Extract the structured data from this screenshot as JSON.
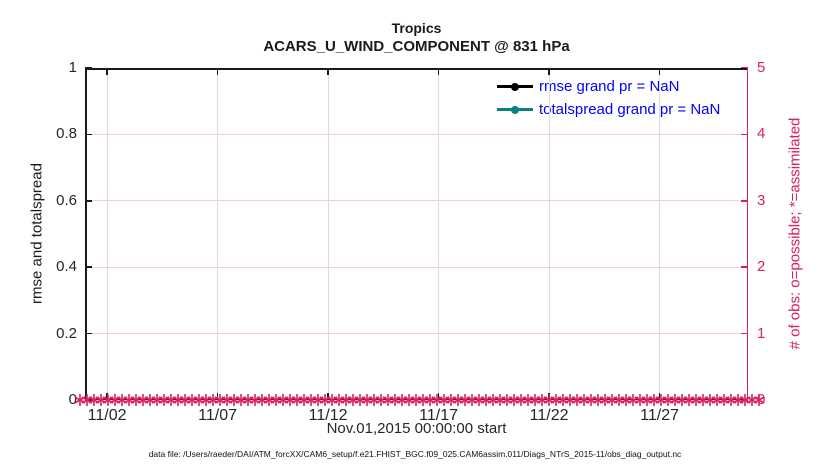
{
  "title": {
    "line1": "Tropics",
    "line2": "ACARS_U_WIND_COMPONENT @ 831 hPa"
  },
  "axes": {
    "left": {
      "label": "rmse and totalspread",
      "ticks": [
        "0",
        "0.2",
        "0.4",
        "0.6",
        "0.8",
        "1"
      ]
    },
    "right": {
      "label": "# of obs: o=possible; *=assimilated",
      "ticks": [
        "0",
        "1",
        "2",
        "3",
        "4",
        "5"
      ]
    },
    "x": {
      "label": "Nov.01,2015 00:00:00 start",
      "ticks": [
        "11/02",
        "11/07",
        "11/12",
        "11/17",
        "11/22",
        "11/27"
      ]
    }
  },
  "legend": [
    {
      "label": "rmse grand pr = NaN",
      "color": "#000000"
    },
    {
      "label": "totalspread grand pr = NaN",
      "color": "#0A8282"
    }
  ],
  "colors": {
    "obs": "#D8215D",
    "right_axis": "#D8215D",
    "legend_text": "#0000FF",
    "axis_dark": "#1a1a1a",
    "tick_label": "#262626"
  },
  "caption": "data file: /Users/raeder/DAI/ATM_forcXX/CAM6_setup/f.e21.FHIST_BGC.f09_025.CAM6assim.011/Diags_NTrS_2015-11/obs_diag_output.nc",
  "chart_data": {
    "type": "line",
    "title": "Tropics",
    "subtitle": "ACARS_U_WIND_COMPONENT @ 831 hPa",
    "xlabel": "Nov.01,2015 00:00:00 start",
    "x_tick_labels": [
      "11/02",
      "11/07",
      "11/12",
      "11/17",
      "11/22",
      "11/27"
    ],
    "x_range": [
      "2015-11-01 00:00",
      "2015-12-01 00:00"
    ],
    "y_left": {
      "label": "rmse and totalspread",
      "lim": [
        0,
        1
      ],
      "ticks": [
        0,
        0.2,
        0.4,
        0.6,
        0.8,
        1
      ]
    },
    "y_right": {
      "label": "# of obs: o=possible; *=assimilated",
      "lim": [
        0,
        5
      ],
      "ticks": [
        0,
        1,
        2,
        3,
        4,
        5
      ]
    },
    "series": [
      {
        "name": "rmse",
        "legend": "rmse grand pr = NaN",
        "axis": "left",
        "color": "#000000",
        "marker": "filled-circle",
        "values": "all NaN - no line plotted"
      },
      {
        "name": "totalspread",
        "legend": "totalspread grand pr = NaN",
        "axis": "left",
        "color": "#0A8282",
        "marker": "filled-circle",
        "values": "all NaN - no line plotted"
      },
      {
        "name": "obs assimilated",
        "axis": "right",
        "color": "#D8215D",
        "marker": "asterisk",
        "values": "0 at every time bin from 2015-11-01 through 2015-12-01"
      }
    ],
    "grid": true,
    "legend_position": "upper-right-inside"
  }
}
